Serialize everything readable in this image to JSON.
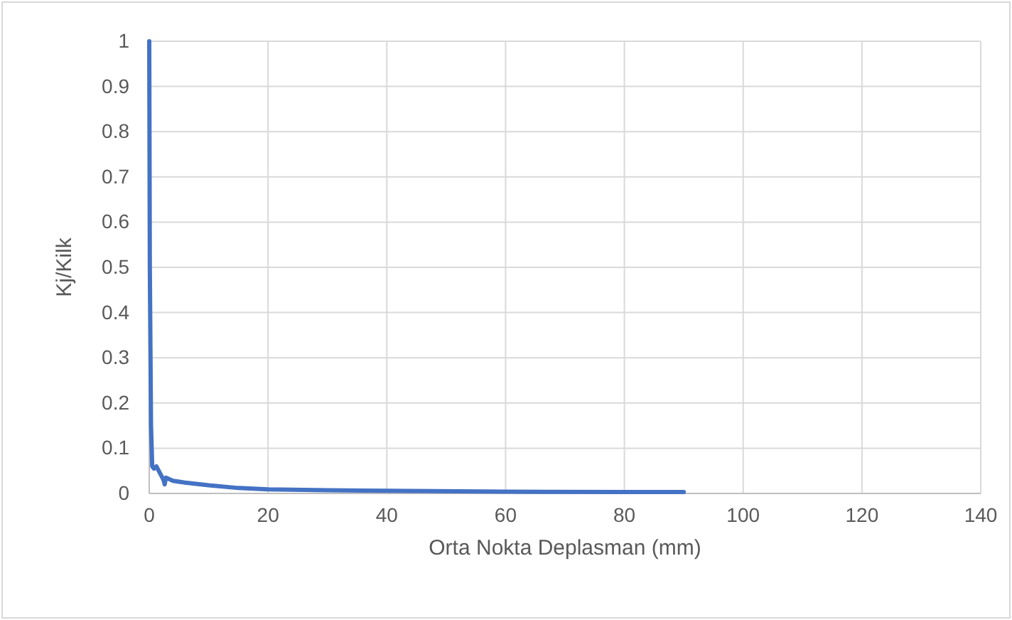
{
  "chart_data": {
    "type": "line",
    "xlabel": "Orta Nokta Deplasman (mm)",
    "ylabel": "Kj/Kilk",
    "xlim": [
      0,
      140
    ],
    "xticks": [
      0,
      20,
      40,
      60,
      80,
      100,
      120,
      140
    ],
    "ylim": [
      0,
      1
    ],
    "yticks": [
      0,
      0.1,
      0.2,
      0.3,
      0.4,
      0.5,
      0.6,
      0.7,
      0.8,
      0.9,
      1
    ],
    "grid": true,
    "marker": "none",
    "line_style": "solid",
    "series": [
      {
        "color": "#4472c4",
        "x": [
          0,
          0.1,
          0.3,
          0.5,
          0.8,
          1.2,
          1.8,
          2.4,
          2.6,
          2.8,
          4,
          6,
          10,
          15,
          20,
          30,
          40,
          60,
          80,
          90
        ],
        "values": [
          1,
          0.5,
          0.15,
          0.06,
          0.055,
          0.06,
          0.045,
          0.03,
          0.02,
          0.035,
          0.028,
          0.024,
          0.018,
          0.012,
          0.009,
          0.007,
          0.006,
          0.004,
          0.003,
          0.003
        ]
      }
    ]
  }
}
